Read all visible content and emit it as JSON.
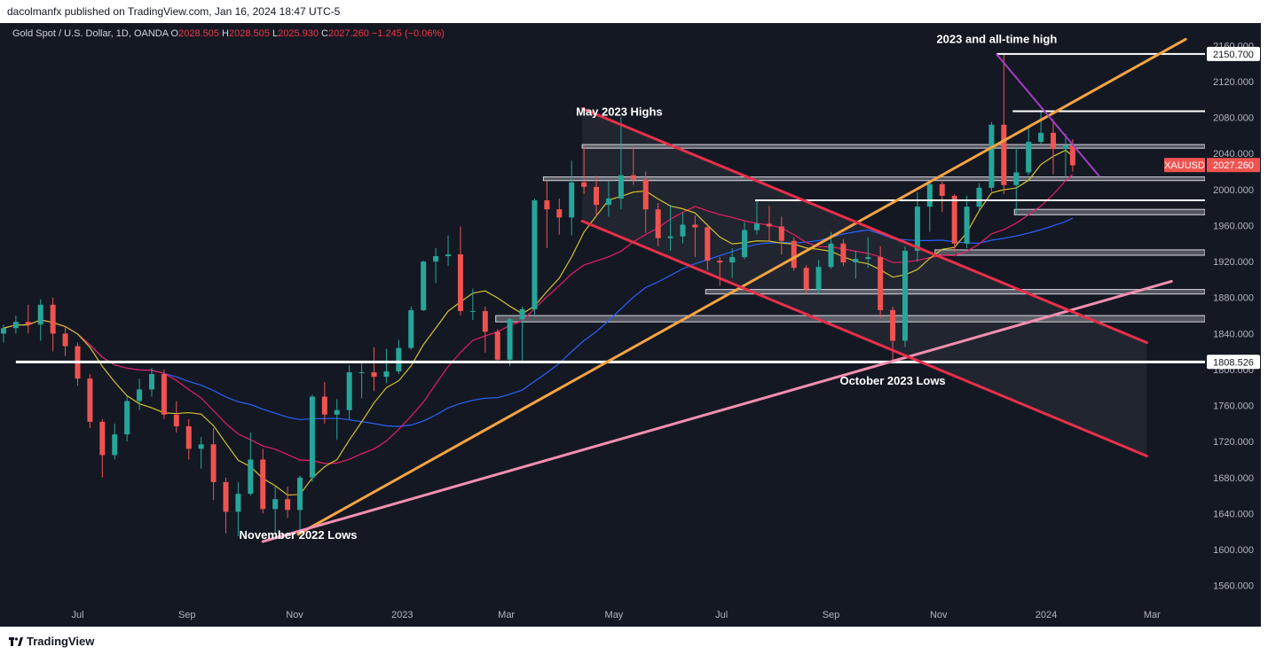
{
  "header": {
    "published": "dacolmanfx published on TradingView.com, Jan 16, 2024 18:47 UTC-5"
  },
  "legend": {
    "symbol": "Gold Spot / U.S. Dollar, 1D, OANDA",
    "o_label": "O",
    "o": "2028.505",
    "h_label": "H",
    "h": "2028.505",
    "l_label": "L",
    "l": "2025.930",
    "c_label": "C",
    "c": "2027.260",
    "change": "−1.245 (−0.06%)"
  },
  "footer": {
    "brand": "TradingView"
  },
  "colors": {
    "background": "#141823",
    "up": "#26a69a",
    "down": "#ef5350",
    "ma50": "#d4c12f",
    "ma100": "#e91e63",
    "ma200": "#2962ff",
    "orange_trend": "#f5a442",
    "pink_trend": "#f48fb1",
    "red_channel": "#e8304a",
    "purple_trend": "#a23ec5"
  },
  "chart_data": {
    "type": "candlestick",
    "symbol": "XAUUSD",
    "last_price": "2027.260",
    "price_tag_label": "XAUUSD",
    "y_ticks": [
      "2160.000",
      "2120.000",
      "2080.000",
      "2040.000",
      "2000.000",
      "1960.000",
      "1920.000",
      "1880.000",
      "1840.000",
      "1800.000",
      "1760.000",
      "1720.000",
      "1680.000",
      "1640.000",
      "1600.000",
      "1560.000"
    ],
    "ylim": [
      1540,
      2185
    ],
    "x_ticks": [
      "Jul",
      "Sep",
      "Nov",
      "2023",
      "Mar",
      "May",
      "Jul",
      "Sep",
      "Nov",
      "2024",
      "Mar"
    ],
    "xlim": [
      "2022-05-18",
      "2024-03-31"
    ],
    "tagged_levels": [
      {
        "label": "2150.700",
        "value": 2150.7
      },
      {
        "label": "1808.526",
        "value": 1808.526
      }
    ],
    "annotations": [
      {
        "text": "2023 and all-time high",
        "date": "2023-12-04",
        "price": 2163
      },
      {
        "text": "May 2023 Highs",
        "date": "2023-05-04",
        "price": 2082
      },
      {
        "text": "November 2022 Lows",
        "date": "2022-11-03",
        "price": 1612
      },
      {
        "text": "October 2023 Lows",
        "date": "2023-10-06",
        "price": 1783
      }
    ],
    "horizontal_lines": [
      {
        "value": 2150.7,
        "from": "2023-12-04",
        "to": "2024-03-31",
        "color": "#ffffff"
      },
      {
        "value": 2087,
        "from": "2023-12-13",
        "to": "2024-03-31",
        "color": "#ffffff"
      },
      {
        "value": 1808.5,
        "from": "2022-05-27",
        "to": "2024-03-31",
        "color": "#ffffff"
      },
      {
        "value": 1988,
        "from": "2023-07-20",
        "to": "2024-03-31",
        "color": "#ffffff"
      }
    ],
    "zones": [
      {
        "low": 2046,
        "high": 2050,
        "from": "2023-04-13",
        "to": "2024-03-31"
      },
      {
        "low": 2010,
        "high": 2014,
        "from": "2023-03-22",
        "to": "2024-03-31"
      },
      {
        "low": 1972,
        "high": 1978,
        "from": "2023-12-14",
        "to": "2024-03-31"
      },
      {
        "low": 1927,
        "high": 1933,
        "from": "2023-10-30",
        "to": "2024-03-31"
      },
      {
        "low": 1884,
        "high": 1889,
        "from": "2023-06-22",
        "to": "2024-03-31"
      },
      {
        "low": 1853,
        "high": 1860,
        "from": "2023-02-23",
        "to": "2024-03-31"
      }
    ],
    "trendlines": [
      {
        "name": "orange",
        "from": [
          "2022-11-03",
          1617
        ],
        "to": [
          "2024-03-20",
          2167
        ]
      },
      {
        "name": "pink",
        "from": [
          "2022-10-14",
          1609
        ],
        "to": [
          "2024-03-12",
          1898
        ]
      },
      {
        "name": "red_upper",
        "from": [
          "2023-04-13",
          2090
        ],
        "to": [
          "2024-02-27",
          1830
        ]
      },
      {
        "name": "red_lower",
        "from": [
          "2023-04-13",
          1965
        ],
        "to": [
          "2024-02-27",
          1704
        ]
      },
      {
        "name": "purple",
        "from": [
          "2023-12-04",
          2150
        ],
        "to": [
          "2024-01-31",
          2015
        ]
      }
    ],
    "candles": [
      {
        "date": "2022-05-20",
        "o": 1840,
        "h": 1850,
        "l": 1830,
        "c": 1846
      },
      {
        "date": "2022-05-27",
        "o": 1846,
        "h": 1860,
        "l": 1840,
        "c": 1853
      },
      {
        "date": "2022-06-03",
        "o": 1853,
        "h": 1872,
        "l": 1840,
        "c": 1850
      },
      {
        "date": "2022-06-10",
        "o": 1850,
        "h": 1878,
        "l": 1832,
        "c": 1872
      },
      {
        "date": "2022-06-17",
        "o": 1872,
        "h": 1880,
        "l": 1820,
        "c": 1840
      },
      {
        "date": "2022-06-24",
        "o": 1840,
        "h": 1848,
        "l": 1815,
        "c": 1826
      },
      {
        "date": "2022-07-01",
        "o": 1826,
        "h": 1830,
        "l": 1782,
        "c": 1790
      },
      {
        "date": "2022-07-08",
        "o": 1790,
        "h": 1795,
        "l": 1735,
        "c": 1742
      },
      {
        "date": "2022-07-15",
        "o": 1742,
        "h": 1745,
        "l": 1680,
        "c": 1705
      },
      {
        "date": "2022-07-22",
        "o": 1705,
        "h": 1740,
        "l": 1700,
        "c": 1728
      },
      {
        "date": "2022-07-29",
        "o": 1728,
        "h": 1770,
        "l": 1720,
        "c": 1765
      },
      {
        "date": "2022-08-05",
        "o": 1765,
        "h": 1790,
        "l": 1755,
        "c": 1778
      },
      {
        "date": "2022-08-12",
        "o": 1778,
        "h": 1802,
        "l": 1770,
        "c": 1795
      },
      {
        "date": "2022-08-19",
        "o": 1795,
        "h": 1800,
        "l": 1745,
        "c": 1750
      },
      {
        "date": "2022-08-26",
        "o": 1750,
        "h": 1765,
        "l": 1730,
        "c": 1737
      },
      {
        "date": "2022-09-02",
        "o": 1737,
        "h": 1745,
        "l": 1700,
        "c": 1712
      },
      {
        "date": "2022-09-09",
        "o": 1712,
        "h": 1725,
        "l": 1690,
        "c": 1717
      },
      {
        "date": "2022-09-16",
        "o": 1717,
        "h": 1735,
        "l": 1655,
        "c": 1675
      },
      {
        "date": "2022-09-23",
        "o": 1675,
        "h": 1680,
        "l": 1618,
        "c": 1642
      },
      {
        "date": "2022-09-30",
        "o": 1642,
        "h": 1675,
        "l": 1615,
        "c": 1662
      },
      {
        "date": "2022-10-07",
        "o": 1662,
        "h": 1730,
        "l": 1660,
        "c": 1700
      },
      {
        "date": "2022-10-14",
        "o": 1700,
        "h": 1712,
        "l": 1640,
        "c": 1645
      },
      {
        "date": "2022-10-21",
        "o": 1645,
        "h": 1670,
        "l": 1617,
        "c": 1656
      },
      {
        "date": "2022-10-28",
        "o": 1656,
        "h": 1670,
        "l": 1635,
        "c": 1644
      },
      {
        "date": "2022-11-04",
        "o": 1644,
        "h": 1682,
        "l": 1616,
        "c": 1680
      },
      {
        "date": "2022-11-11",
        "o": 1680,
        "h": 1772,
        "l": 1675,
        "c": 1770
      },
      {
        "date": "2022-11-18",
        "o": 1770,
        "h": 1786,
        "l": 1740,
        "c": 1750
      },
      {
        "date": "2022-11-25",
        "o": 1750,
        "h": 1767,
        "l": 1722,
        "c": 1755
      },
      {
        "date": "2022-12-02",
        "o": 1755,
        "h": 1805,
        "l": 1745,
        "c": 1797
      },
      {
        "date": "2022-12-09",
        "o": 1797,
        "h": 1810,
        "l": 1768,
        "c": 1797
      },
      {
        "date": "2022-12-16",
        "o": 1797,
        "h": 1825,
        "l": 1776,
        "c": 1792
      },
      {
        "date": "2022-12-23",
        "o": 1792,
        "h": 1823,
        "l": 1785,
        "c": 1798
      },
      {
        "date": "2022-12-30",
        "o": 1798,
        "h": 1833,
        "l": 1795,
        "c": 1824
      },
      {
        "date": "2023-01-06",
        "o": 1824,
        "h": 1870,
        "l": 1822,
        "c": 1866
      },
      {
        "date": "2023-01-13",
        "o": 1866,
        "h": 1921,
        "l": 1865,
        "c": 1920
      },
      {
        "date": "2023-01-20",
        "o": 1920,
        "h": 1935,
        "l": 1896,
        "c": 1926
      },
      {
        "date": "2023-01-27",
        "o": 1926,
        "h": 1949,
        "l": 1915,
        "c": 1928
      },
      {
        "date": "2023-02-03",
        "o": 1928,
        "h": 1959,
        "l": 1860,
        "c": 1865
      },
      {
        "date": "2023-02-10",
        "o": 1865,
        "h": 1890,
        "l": 1855,
        "c": 1865
      },
      {
        "date": "2023-02-17",
        "o": 1865,
        "h": 1870,
        "l": 1819,
        "c": 1842
      },
      {
        "date": "2023-02-24",
        "o": 1842,
        "h": 1845,
        "l": 1809,
        "c": 1811
      },
      {
        "date": "2023-03-03",
        "o": 1811,
        "h": 1858,
        "l": 1804,
        "c": 1856
      },
      {
        "date": "2023-03-10",
        "o": 1856,
        "h": 1870,
        "l": 1810,
        "c": 1867
      },
      {
        "date": "2023-03-17",
        "o": 1867,
        "h": 1990,
        "l": 1860,
        "c": 1988
      },
      {
        "date": "2023-03-24",
        "o": 1988,
        "h": 2010,
        "l": 1935,
        "c": 1978
      },
      {
        "date": "2023-03-31",
        "o": 1978,
        "h": 1990,
        "l": 1950,
        "c": 1969
      },
      {
        "date": "2023-04-07",
        "o": 1969,
        "h": 2032,
        "l": 1949,
        "c": 2008
      },
      {
        "date": "2023-04-14",
        "o": 2008,
        "h": 2048,
        "l": 1995,
        "c": 2003
      },
      {
        "date": "2023-04-21",
        "o": 2003,
        "h": 2015,
        "l": 1970,
        "c": 1983
      },
      {
        "date": "2023-04-28",
        "o": 1983,
        "h": 2009,
        "l": 1970,
        "c": 1990
      },
      {
        "date": "2023-05-05",
        "o": 1990,
        "h": 2081,
        "l": 1978,
        "c": 2016
      },
      {
        "date": "2023-05-12",
        "o": 2016,
        "h": 2048,
        "l": 2005,
        "c": 2011
      },
      {
        "date": "2023-05-19",
        "o": 2011,
        "h": 2020,
        "l": 1952,
        "c": 1978
      },
      {
        "date": "2023-05-26",
        "o": 1978,
        "h": 1985,
        "l": 1937,
        "c": 1946
      },
      {
        "date": "2023-06-02",
        "o": 1946,
        "h": 1983,
        "l": 1932,
        "c": 1948
      },
      {
        "date": "2023-06-09",
        "o": 1948,
        "h": 1975,
        "l": 1940,
        "c": 1961
      },
      {
        "date": "2023-06-16",
        "o": 1961,
        "h": 1971,
        "l": 1925,
        "c": 1958
      },
      {
        "date": "2023-06-23",
        "o": 1958,
        "h": 1962,
        "l": 1910,
        "c": 1921
      },
      {
        "date": "2023-06-30",
        "o": 1921,
        "h": 1925,
        "l": 1893,
        "c": 1919
      },
      {
        "date": "2023-07-07",
        "o": 1919,
        "h": 1935,
        "l": 1902,
        "c": 1925
      },
      {
        "date": "2023-07-14",
        "o": 1925,
        "h": 1964,
        "l": 1923,
        "c": 1955
      },
      {
        "date": "2023-07-21",
        "o": 1955,
        "h": 1987,
        "l": 1950,
        "c": 1962
      },
      {
        "date": "2023-07-28",
        "o": 1962,
        "h": 1982,
        "l": 1942,
        "c": 1959
      },
      {
        "date": "2023-08-04",
        "o": 1959,
        "h": 1970,
        "l": 1928,
        "c": 1943
      },
      {
        "date": "2023-08-11",
        "o": 1943,
        "h": 1947,
        "l": 1910,
        "c": 1913
      },
      {
        "date": "2023-08-18",
        "o": 1913,
        "h": 1916,
        "l": 1885,
        "c": 1889
      },
      {
        "date": "2023-08-25",
        "o": 1889,
        "h": 1922,
        "l": 1884,
        "c": 1914
      },
      {
        "date": "2023-09-01",
        "o": 1914,
        "h": 1953,
        "l": 1912,
        "c": 1940
      },
      {
        "date": "2023-09-08",
        "o": 1940,
        "h": 1945,
        "l": 1915,
        "c": 1919
      },
      {
        "date": "2023-09-15",
        "o": 1919,
        "h": 1932,
        "l": 1901,
        "c": 1923
      },
      {
        "date": "2023-09-22",
        "o": 1923,
        "h": 1947,
        "l": 1913,
        "c": 1925
      },
      {
        "date": "2023-09-29",
        "o": 1925,
        "h": 1937,
        "l": 1857,
        "c": 1866
      },
      {
        "date": "2023-10-06",
        "o": 1866,
        "h": 1870,
        "l": 1810,
        "c": 1832
      },
      {
        "date": "2023-10-13",
        "o": 1832,
        "h": 1937,
        "l": 1825,
        "c": 1932
      },
      {
        "date": "2023-10-20",
        "o": 1932,
        "h": 1997,
        "l": 1920,
        "c": 1981
      },
      {
        "date": "2023-10-27",
        "o": 1981,
        "h": 2009,
        "l": 1953,
        "c": 2006
      },
      {
        "date": "2023-11-03",
        "o": 2006,
        "h": 2009,
        "l": 1975,
        "c": 1993
      },
      {
        "date": "2023-11-10",
        "o": 1993,
        "h": 1995,
        "l": 1931,
        "c": 1940
      },
      {
        "date": "2023-11-17",
        "o": 1940,
        "h": 1993,
        "l": 1935,
        "c": 1981
      },
      {
        "date": "2023-11-24",
        "o": 1981,
        "h": 2007,
        "l": 1976,
        "c": 2002
      },
      {
        "date": "2023-12-01",
        "o": 2002,
        "h": 2075,
        "l": 1998,
        "c": 2072
      },
      {
        "date": "2023-12-08",
        "o": 2072,
        "h": 2150,
        "l": 1995,
        "c": 2005
      },
      {
        "date": "2023-12-15",
        "o": 2005,
        "h": 2047,
        "l": 1973,
        "c": 2019
      },
      {
        "date": "2023-12-22",
        "o": 2019,
        "h": 2071,
        "l": 2016,
        "c": 2053
      },
      {
        "date": "2023-12-29",
        "o": 2053,
        "h": 2088,
        "l": 2050,
        "c": 2063
      },
      {
        "date": "2024-01-05",
        "o": 2063,
        "h": 2078,
        "l": 2017,
        "c": 2045
      },
      {
        "date": "2024-01-12",
        "o": 2045,
        "h": 2062,
        "l": 2013,
        "c": 2049
      },
      {
        "date": "2024-01-16",
        "o": 2049,
        "h": 2056,
        "l": 2020,
        "c": 2027
      }
    ]
  }
}
